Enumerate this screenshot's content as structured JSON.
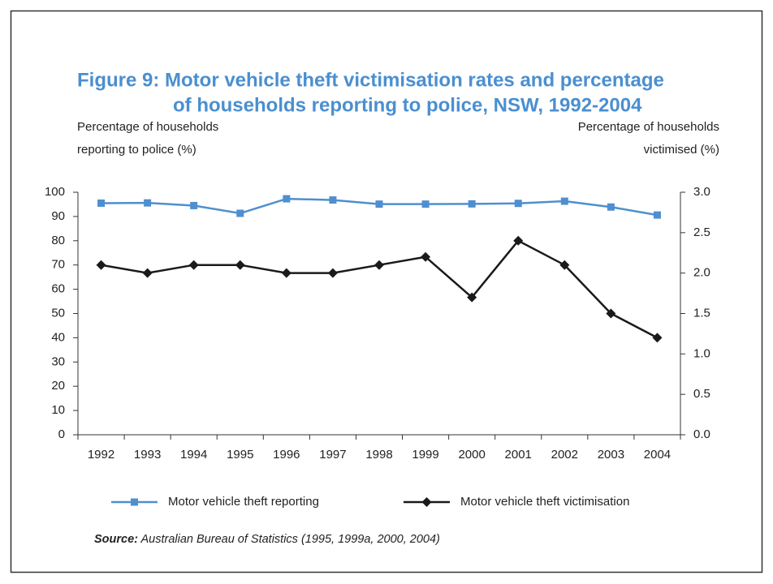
{
  "chart_data": {
    "type": "line",
    "title": [
      "Figure 9: Motor vehicle theft victimisation rates and percentage",
      "of households reporting to police, NSW, 1992-2004"
    ],
    "y_label": [
      "Percentage of households",
      "reporting to police (%)"
    ],
    "y2_label": [
      "Percentage of households",
      "victimised (%)"
    ],
    "categories": [
      "1992",
      "1993",
      "1994",
      "1995",
      "1996",
      "1997",
      "1998",
      "1999",
      "2000",
      "2001",
      "2002",
      "2003",
      "2004"
    ],
    "series": [
      {
        "name": "Motor vehicle theft reporting",
        "color": "#4f8fcf",
        "marker": "square",
        "values": [
          95.5,
          95.6,
          94.5,
          91.3,
          97.3,
          96.8,
          95.1,
          95.1,
          95.2,
          95.4,
          96.3,
          93.9,
          90.6
        ]
      },
      {
        "name": "Motor vehicle theft victimisation",
        "color": "#1a1a1a",
        "marker": "diamond",
        "axis": "y2",
        "values": [
          2.1,
          2.0,
          2.1,
          2.1,
          2.0,
          2.0,
          2.1,
          2.2,
          1.7,
          2.4,
          2.1,
          1.5,
          1.2
        ]
      }
    ],
    "ylim": [
      0,
      100
    ],
    "yticks": [
      0,
      10,
      20,
      30,
      40,
      50,
      60,
      70,
      80,
      90,
      100
    ],
    "y2lim": [
      0,
      3
    ],
    "y2ticks": [
      {
        "value": 0,
        "label": "0.0"
      },
      0.5,
      {
        "value": 1,
        "label": "1.0"
      },
      1.5,
      {
        "value": 2,
        "label": "2.0"
      },
      2.5,
      {
        "value": 3,
        "label": "3.0"
      }
    ],
    "grid": false,
    "source_label": "Source:",
    "source_text": "Australian Bureau of Statistics (1995, 1999a, 2000, 2004)"
  }
}
